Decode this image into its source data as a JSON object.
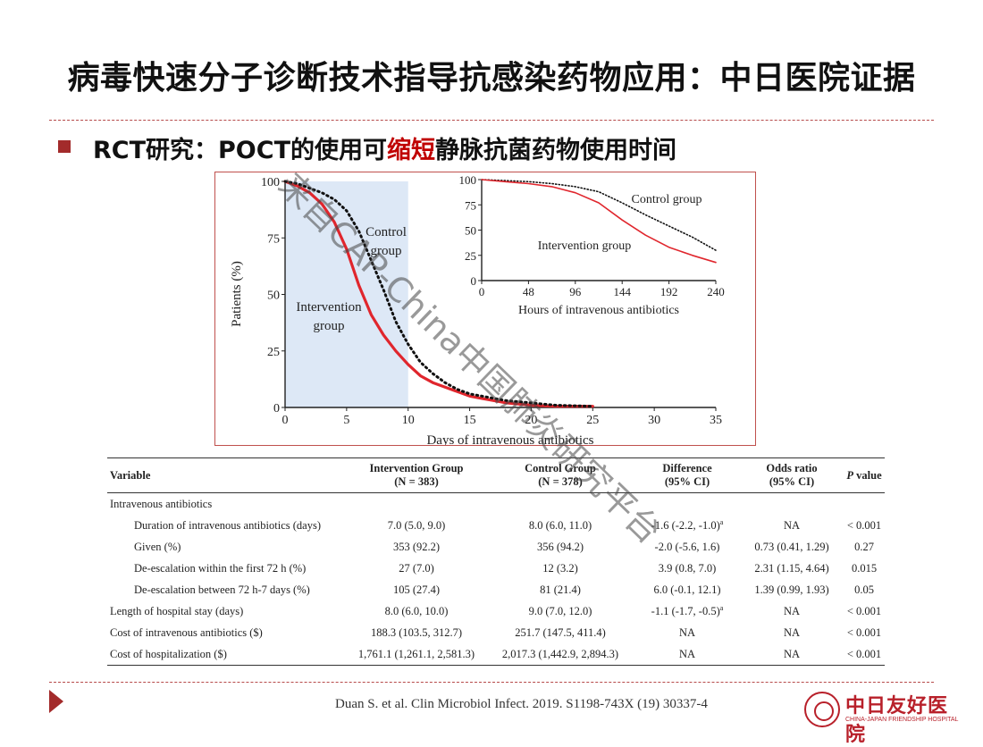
{
  "slide": {
    "title": "病毒快速分子诊断技术指导抗感染药物应用：中日医院证据",
    "bullet_prefix": "RCT研究：POCT的使用可",
    "bullet_highlight": "缩短",
    "bullet_suffix": "静脉抗菌药物使用时间",
    "citation": "Duan S. et al. Clin Microbiol Infect. 2019. S1198-743X (19) 30337-4",
    "watermark": "来自CAP-China中国肺炎研究平台"
  },
  "logo": {
    "name": "中日友好医院",
    "subtitle": "CHINA-JAPAN FRIENDSHIP HOSPITAL"
  },
  "colors": {
    "accent": "#a32b2b",
    "intervention": "#e0262d",
    "control": "#111111",
    "shade": "#dde8f6",
    "highlight": "#c00000"
  },
  "chart_data": [
    {
      "type": "line",
      "xlabel": "Days of intravenous antibiotics",
      "ylabel": "Patients (%)",
      "xlim": [
        0,
        35
      ],
      "ylim": [
        0,
        100
      ],
      "xticks": [
        0,
        5,
        10,
        15,
        20,
        25,
        30,
        35
      ],
      "yticks": [
        0,
        25,
        50,
        75,
        100
      ],
      "shaded_region": [
        0,
        10
      ],
      "series": [
        {
          "name": "Intervention group",
          "style": "solid",
          "color": "#e0262d",
          "x": [
            0,
            1,
            2,
            3,
            4,
            5,
            6,
            7,
            8,
            9,
            10,
            11,
            12,
            13,
            14,
            15,
            16,
            17,
            18,
            20,
            22,
            25
          ],
          "y": [
            100,
            98,
            95,
            90,
            82,
            70,
            54,
            41,
            32,
            25,
            19,
            14,
            11,
            9,
            7,
            5,
            4,
            3,
            2,
            1,
            0.5,
            0.5
          ]
        },
        {
          "name": "Control group",
          "style": "dotted",
          "color": "#111111",
          "x": [
            0,
            1,
            2,
            3,
            4,
            5,
            6,
            7,
            8,
            9,
            10,
            11,
            12,
            13,
            14,
            15,
            16,
            17,
            18,
            20,
            22,
            25
          ],
          "y": [
            100,
            99,
            97,
            95,
            92,
            87,
            78,
            65,
            52,
            38,
            28,
            20,
            15,
            11,
            8,
            6,
            5,
            4,
            3,
            2,
            1,
            0.5
          ]
        }
      ]
    },
    {
      "type": "line",
      "xlabel": "Hours of intravenous antibiotics",
      "xlim": [
        0,
        240
      ],
      "ylim": [
        0,
        100
      ],
      "xticks": [
        0,
        48,
        96,
        144,
        192,
        240
      ],
      "yticks": [
        0,
        25,
        50,
        75,
        100
      ],
      "series": [
        {
          "name": "Control group",
          "style": "dotted",
          "color": "#111111",
          "x": [
            0,
            24,
            48,
            72,
            96,
            120,
            144,
            168,
            192,
            216,
            240
          ],
          "y": [
            100,
            99,
            98,
            96,
            93,
            88,
            77,
            65,
            54,
            43,
            30
          ]
        },
        {
          "name": "Intervention group",
          "style": "solid",
          "color": "#e0262d",
          "x": [
            0,
            24,
            48,
            72,
            96,
            120,
            144,
            168,
            192,
            216,
            240
          ],
          "y": [
            100,
            98,
            96,
            93,
            87,
            77,
            60,
            45,
            33,
            25,
            18
          ]
        }
      ]
    }
  ],
  "main_labels": {
    "control": [
      "Control",
      "group"
    ],
    "intervention": [
      "Intervention",
      "group"
    ]
  },
  "inset_labels": {
    "control": "Control group",
    "intervention": "Intervention group"
  },
  "table": {
    "headers": {
      "variable": "Variable",
      "intervention": [
        "Intervention Group",
        "(N = 383)"
      ],
      "control": [
        "Control Group",
        "(N = 378)"
      ],
      "difference": [
        "Difference",
        "(95% CI)"
      ],
      "odds": [
        "Odds ratio",
        "(95% CI)"
      ],
      "p_italic": "P",
      "p_rest": " value"
    },
    "section_label": "Intravenous antibiotics",
    "rows": [
      {
        "variable": "Duration of intravenous antibiotics (days)",
        "intervention": "7.0 (5.0, 9.0)",
        "control": "8.0 (6.0, 11.0)",
        "difference": "-1.6 (-2.2, -1.0)",
        "sup": "a",
        "odds": "NA",
        "p": "< 0.001"
      },
      {
        "variable": "Given (%)",
        "intervention": "353 (92.2)",
        "control": "356 (94.2)",
        "difference": "-2.0 (-5.6, 1.6)",
        "sup": "",
        "odds": "0.73 (0.41, 1.29)",
        "p": "0.27"
      },
      {
        "variable": "De-escalation within the first 72 h (%)",
        "intervention": "27 (7.0)",
        "control": "12 (3.2)",
        "difference": "3.9 (0.8, 7.0)",
        "sup": "",
        "odds": "2.31 (1.15, 4.64)",
        "p": "0.015"
      },
      {
        "variable": "De-escalation between 72 h-7 days (%)",
        "intervention": "105 (27.4)",
        "control": "81 (21.4)",
        "difference": "6.0 (-0.1, 12.1)",
        "sup": "",
        "odds": "1.39 (0.99, 1.93)",
        "p": "0.05"
      },
      {
        "variable": "Length of hospital stay (days)",
        "intervention": "8.0 (6.0, 10.0)",
        "control": "9.0 (7.0, 12.0)",
        "difference": "-1.1 (-1.7, -0.5)",
        "sup": "a",
        "odds": "NA",
        "p": "< 0.001"
      },
      {
        "variable": "Cost of intravenous antibiotics ($)",
        "intervention": "188.3 (103.5, 312.7)",
        "control": "251.7 (147.5, 411.4)",
        "difference": "NA",
        "sup": "",
        "odds": "NA",
        "p": "< 0.001"
      },
      {
        "variable": "Cost of hospitalization ($)",
        "intervention": "1,761.1 (1,261.1, 2,581.3)",
        "control": "2,017.3 (1,442.9, 2,894.3)",
        "difference": "NA",
        "sup": "",
        "odds": "NA",
        "p": "< 0.001"
      }
    ]
  }
}
